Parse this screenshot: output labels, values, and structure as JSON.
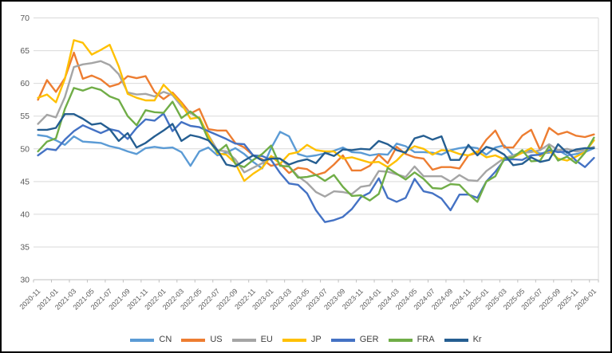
{
  "chart_data": {
    "type": "line",
    "title": "",
    "xlabel": "",
    "ylabel": "",
    "ylim": [
      30,
      70
    ],
    "y_ticks": [
      30,
      35,
      40,
      45,
      50,
      55,
      60,
      65,
      70
    ],
    "grid": "horizontal",
    "legend_position": "bottom",
    "x": [
      "2020-11",
      "2020-12",
      "2021-01",
      "2021-02",
      "2021-03",
      "2021-04",
      "2021-05",
      "2021-06",
      "2021-07",
      "2021-08",
      "2021-09",
      "2021-10",
      "2021-11",
      "2021-12",
      "2022-01",
      "2022-02",
      "2022-03",
      "2022-04",
      "2022-05",
      "2022-06",
      "2022-07",
      "2022-08",
      "2022-09",
      "2022-10",
      "2022-11",
      "2022-12",
      "2023-01",
      "2023-02",
      "2023-03",
      "2023-04",
      "2023-05",
      "2023-06",
      "2023-07",
      "2023-08",
      "2023-09",
      "2023-10",
      "2023-11",
      "2023-12",
      "2024-01",
      "2024-02",
      "2024-03",
      "2024-04",
      "2024-05",
      "2024-06",
      "2024-07",
      "2024-08",
      "2024-09",
      "2024-10",
      "2024-11",
      "2024-12",
      "2025-01",
      "2025-02",
      "2025-03",
      "2025-04",
      "2025-05",
      "2025-06",
      "2025-07",
      "2025-08",
      "2025-09",
      "2025-10",
      "2025-11",
      "2025-12",
      "2026-01"
    ],
    "x_tick_labels": [
      "2020-11",
      "2021-01",
      "2021-03",
      "2021-05",
      "2021-07",
      "2021-09",
      "2021-11",
      "2022-01",
      "2022-03",
      "2022-05",
      "2022-07",
      "2022-09",
      "2022-11",
      "2023-01",
      "2023-03",
      "2023-05",
      "2023-07",
      "2023-09",
      "2023-11",
      "2024-01",
      "2024-03",
      "2024-05",
      "2024-07",
      "2024-09",
      "2024-11",
      "2025-01",
      "2025-03",
      "2025-05",
      "2025-07",
      "2025-09",
      "2025-11",
      "2026-01"
    ],
    "series": [
      {
        "name": "CN",
        "color": "#5B9BD5",
        "values": [
          52.1,
          51.9,
          51.3,
          50.6,
          51.9,
          51.1,
          51.0,
          50.9,
          50.4,
          50.1,
          49.6,
          49.2,
          50.1,
          50.3,
          50.1,
          50.2,
          49.5,
          47.4,
          49.6,
          50.2,
          49.0,
          49.4,
          50.1,
          49.2,
          48.0,
          47.0,
          50.1,
          52.6,
          51.9,
          49.2,
          48.8,
          49.0,
          49.3,
          49.7,
          50.2,
          49.5,
          49.4,
          49.0,
          49.2,
          49.1,
          50.8,
          50.4,
          49.5,
          49.5,
          49.4,
          49.1,
          49.8,
          50.1,
          50.3,
          50.1,
          49.1,
          50.2,
          50.5,
          49.0,
          49.5,
          49.7,
          49.3,
          49.4,
          49.8,
          49.0,
          49.2,
          49.5,
          50.1
        ]
      },
      {
        "name": "US",
        "color": "#ED7D31",
        "values": [
          57.5,
          60.5,
          58.7,
          60.8,
          64.7,
          60.7,
          61.2,
          60.6,
          59.5,
          59.9,
          61.1,
          60.8,
          61.1,
          58.7,
          57.6,
          58.6,
          57.1,
          55.4,
          56.1,
          53.0,
          52.8,
          52.8,
          50.9,
          50.2,
          49.0,
          48.4,
          47.4,
          47.7,
          46.3,
          47.1,
          46.9,
          46.0,
          46.4,
          47.6,
          49.0,
          46.7,
          46.7,
          47.4,
          49.1,
          47.8,
          50.3,
          49.2,
          48.7,
          48.5,
          46.8,
          47.2,
          47.2,
          47.0,
          49.0,
          49.4,
          51.4,
          52.8,
          50.2,
          50.2,
          52.0,
          52.9,
          49.8,
          53.2,
          52.2,
          52.6,
          52.0,
          51.8,
          52.2
        ]
      },
      {
        "name": "EU",
        "color": "#A5A5A5",
        "values": [
          53.8,
          55.2,
          54.8,
          57.9,
          62.5,
          62.9,
          63.1,
          63.4,
          62.8,
          61.4,
          58.6,
          58.3,
          58.4,
          58.0,
          58.7,
          58.2,
          56.5,
          55.5,
          54.6,
          52.1,
          49.8,
          49.6,
          48.4,
          46.4,
          47.1,
          47.8,
          48.8,
          48.5,
          47.3,
          45.8,
          44.8,
          43.4,
          42.7,
          43.5,
          43.4,
          43.1,
          44.2,
          44.4,
          46.6,
          46.5,
          46.1,
          45.7,
          47.3,
          45.8,
          45.8,
          45.8,
          45.0,
          46.0,
          45.2,
          45.1,
          46.6,
          47.6,
          48.6,
          49.0,
          49.4,
          49.5,
          49.8,
          50.7,
          49.8,
          50.0,
          49.6,
          49.8,
          50.3
        ]
      },
      {
        "name": "JP",
        "color": "#FFC000",
        "values": [
          57.8,
          58.3,
          57.1,
          60.7,
          66.6,
          66.2,
          64.4,
          65.1,
          65.9,
          62.6,
          58.4,
          57.8,
          57.4,
          57.4,
          59.8,
          58.4,
          56.9,
          54.6,
          54.8,
          52.0,
          49.3,
          49.1,
          47.8,
          45.1,
          46.2,
          47.1,
          48.9,
          47.7,
          49.2,
          49.5,
          50.6,
          49.8,
          49.6,
          49.6,
          48.5,
          48.7,
          48.3,
          47.9,
          48.0,
          47.2,
          48.2,
          49.6,
          50.4,
          50.0,
          49.1,
          49.8,
          49.7,
          49.2,
          49.0,
          49.6,
          48.7,
          49.0,
          48.4,
          48.7,
          49.4,
          50.1,
          48.9,
          49.7,
          48.5,
          48.2,
          48.8,
          49.5,
          51.3
        ]
      },
      {
        "name": "GER",
        "color": "#4472C4",
        "values": [
          49.0,
          50.0,
          49.8,
          51.4,
          52.7,
          53.6,
          53.0,
          52.4,
          53.0,
          52.7,
          51.5,
          53.2,
          54.5,
          54.3,
          55.4,
          52.7,
          54.1,
          53.5,
          53.3,
          52.7,
          52.1,
          51.5,
          50.8,
          50.7,
          49.0,
          48.9,
          48.3,
          46.3,
          44.7,
          44.5,
          43.2,
          40.6,
          38.8,
          39.1,
          39.6,
          40.8,
          42.6,
          43.3,
          45.5,
          42.5,
          41.9,
          42.5,
          45.4,
          43.5,
          43.2,
          42.4,
          40.6,
          43.0,
          43.0,
          42.5,
          45.0,
          46.5,
          48.3,
          48.4,
          48.3,
          49.0,
          49.1,
          49.8,
          49.5,
          49.6,
          48.2,
          47.2,
          48.6
        ]
      },
      {
        "name": "FRA",
        "color": "#70AD47",
        "values": [
          49.6,
          51.1,
          51.6,
          56.1,
          59.3,
          58.9,
          59.4,
          59.0,
          58.0,
          57.5,
          55.0,
          53.6,
          55.9,
          55.6,
          55.5,
          57.2,
          54.7,
          55.7,
          54.6,
          51.4,
          49.5,
          50.6,
          47.7,
          47.2,
          48.3,
          49.2,
          50.5,
          47.4,
          47.3,
          45.6,
          45.7,
          46.0,
          45.1,
          46.0,
          44.2,
          42.8,
          42.9,
          42.1,
          43.1,
          47.1,
          46.2,
          45.3,
          46.4,
          45.4,
          44.0,
          43.9,
          44.6,
          44.5,
          43.1,
          41.9,
          45.0,
          45.8,
          48.5,
          48.7,
          49.8,
          48.1,
          48.2,
          50.4,
          48.2,
          48.8,
          47.8,
          49.4,
          51.7
        ]
      },
      {
        "name": "Kr",
        "color": "#255E91",
        "values": [
          52.9,
          52.9,
          53.2,
          55.3,
          55.3,
          54.6,
          53.7,
          53.9,
          53.0,
          51.2,
          52.4,
          50.2,
          50.9,
          51.9,
          52.8,
          53.8,
          51.2,
          52.1,
          51.8,
          51.3,
          49.8,
          47.6,
          47.3,
          48.2,
          49.0,
          48.2,
          48.5,
          48.5,
          47.6,
          48.1,
          48.4,
          47.8,
          49.4,
          48.9,
          49.9,
          49.8,
          50.0,
          49.9,
          51.2,
          50.7,
          49.8,
          49.4,
          51.6,
          52.0,
          51.4,
          51.9,
          48.3,
          48.3,
          50.6,
          49.0,
          50.3,
          49.9,
          49.1,
          47.5,
          47.7,
          48.7,
          48.0,
          48.3,
          50.7,
          49.4,
          49.9,
          50.1,
          50.1
        ]
      }
    ],
    "style": {
      "background": "#ffffff",
      "frame_border": "#000000",
      "gridline_color": "#d9d9d9",
      "axis_line_color": "#bfbfbf",
      "axis_text_color": "#595959",
      "legend_text_color": "#404040",
      "line_width": 2.4
    }
  }
}
